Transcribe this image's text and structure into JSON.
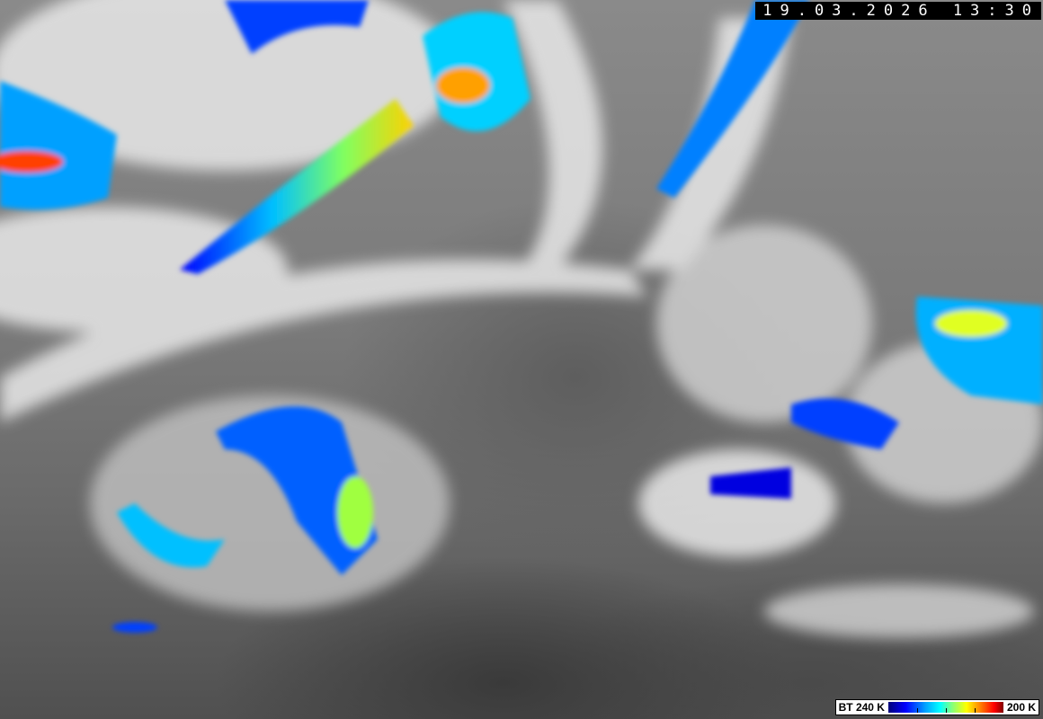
{
  "timestamp": "19.03.2026 13:30",
  "legend": {
    "min_label": "BT 240 K",
    "max_label": "200 K",
    "colors": [
      "#00007a",
      "#0000ff",
      "#00a0ff",
      "#00ffff",
      "#80ff80",
      "#ffff00",
      "#ff8000",
      "#ff0000",
      "#800000"
    ]
  },
  "imagery": "infrared brightness temperature, grayscale with color-enhanced cold cloud tops"
}
